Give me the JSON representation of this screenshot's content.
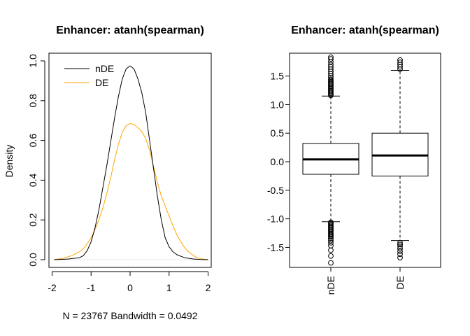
{
  "chart_data": [
    {
      "type": "line",
      "title": "Enhancer: atanh(spearman)",
      "xlabel": "N = 23767   Bandwidth = 0.0492",
      "ylabel": "Density",
      "xlim": [
        -2,
        2
      ],
      "ylim": [
        0,
        1.0
      ],
      "xticks": [
        "-2",
        "-1",
        "0",
        "1",
        "2"
      ],
      "yticks": [
        "0.0",
        "0.2",
        "0.4",
        "0.6",
        "0.8",
        "1.0"
      ],
      "legend_position": "top-left",
      "legend": [
        "nDE",
        "DE"
      ],
      "series": [
        {
          "name": "nDE",
          "color": "#000000",
          "x": [
            -1.95,
            -1.6,
            -1.3,
            -1.2,
            -1.1,
            -1.0,
            -0.9,
            -0.8,
            -0.7,
            -0.6,
            -0.5,
            -0.4,
            -0.3,
            -0.2,
            -0.1,
            0.0,
            0.1,
            0.2,
            0.3,
            0.4,
            0.5,
            0.6,
            0.7,
            0.8,
            0.9,
            1.0,
            1.1,
            1.2,
            1.4,
            1.6,
            1.8,
            2.0
          ],
          "y": [
            0.0,
            0.003,
            0.01,
            0.02,
            0.045,
            0.09,
            0.16,
            0.25,
            0.36,
            0.47,
            0.59,
            0.71,
            0.82,
            0.91,
            0.96,
            0.975,
            0.96,
            0.91,
            0.84,
            0.74,
            0.6,
            0.46,
            0.32,
            0.2,
            0.11,
            0.065,
            0.04,
            0.025,
            0.01,
            0.004,
            0.001,
            0.0
          ]
        },
        {
          "name": "DE",
          "color": "#ffa500",
          "x": [
            -1.95,
            -1.7,
            -1.5,
            -1.3,
            -1.2,
            -1.1,
            -1.0,
            -0.9,
            -0.8,
            -0.7,
            -0.6,
            -0.5,
            -0.4,
            -0.3,
            -0.2,
            -0.1,
            0.0,
            0.1,
            0.2,
            0.3,
            0.4,
            0.5,
            0.6,
            0.7,
            0.8,
            0.9,
            1.0,
            1.1,
            1.2,
            1.3,
            1.4,
            1.5,
            1.6,
            1.7,
            1.8,
            2.0
          ],
          "y": [
            0.0,
            0.008,
            0.02,
            0.04,
            0.055,
            0.08,
            0.11,
            0.15,
            0.2,
            0.26,
            0.33,
            0.41,
            0.5,
            0.58,
            0.64,
            0.675,
            0.685,
            0.68,
            0.665,
            0.645,
            0.61,
            0.55,
            0.47,
            0.39,
            0.32,
            0.27,
            0.22,
            0.17,
            0.125,
            0.09,
            0.06,
            0.04,
            0.025,
            0.012,
            0.005,
            0.0
          ]
        }
      ]
    },
    {
      "type": "box",
      "title": "Enhancer: atanh(spearman)",
      "categories": [
        "nDE",
        "DE"
      ],
      "ylim": [
        -1.85,
        1.9
      ],
      "yticks": [
        "-1.5",
        "-1.0",
        "-0.5",
        "0.0",
        "0.5",
        "1.0",
        "1.5"
      ],
      "boxes": [
        {
          "name": "nDE",
          "whisker_low": -1.05,
          "q1": -0.22,
          "median": 0.04,
          "q3": 0.32,
          "whisker_high": 1.15,
          "outliers_high": [
            1.16,
            1.18,
            1.2,
            1.22,
            1.24,
            1.26,
            1.28,
            1.3,
            1.32,
            1.34,
            1.36,
            1.38,
            1.4,
            1.42,
            1.44,
            1.47,
            1.5,
            1.54,
            1.58,
            1.62,
            1.66,
            1.7,
            1.75,
            1.8,
            1.83
          ],
          "outliers_low": [
            -1.06,
            -1.08,
            -1.1,
            -1.12,
            -1.14,
            -1.16,
            -1.18,
            -1.2,
            -1.22,
            -1.24,
            -1.26,
            -1.28,
            -1.3,
            -1.32,
            -1.35,
            -1.38,
            -1.42,
            -1.47,
            -1.55,
            -1.65,
            -1.77
          ]
        },
        {
          "name": "DE",
          "whisker_low": -1.38,
          "q1": -0.25,
          "median": 0.11,
          "q3": 0.5,
          "whisker_high": 1.6,
          "outliers_high": [
            1.62,
            1.66,
            1.7,
            1.74,
            1.78
          ],
          "outliers_low": [
            -1.42,
            -1.45,
            -1.48,
            -1.52,
            -1.57,
            -1.62,
            -1.68
          ]
        }
      ]
    }
  ]
}
